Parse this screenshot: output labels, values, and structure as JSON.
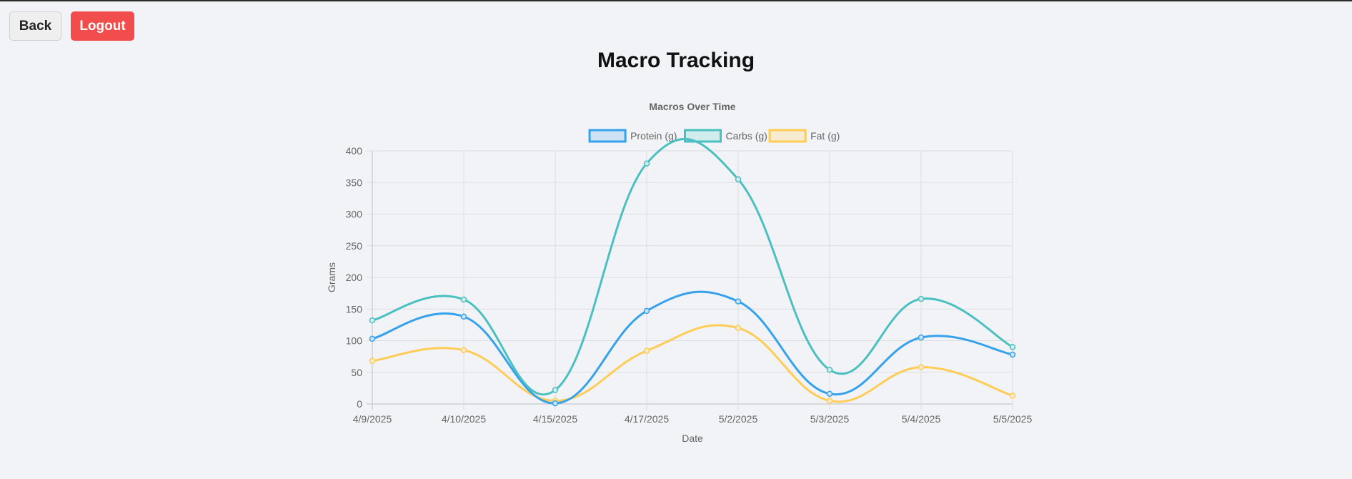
{
  "nav": {
    "back_label": "Back",
    "logout_label": "Logout"
  },
  "page": {
    "title": "Macro Tracking"
  },
  "chart_data": {
    "type": "line",
    "title": "Macros Over Time",
    "xlabel": "Date",
    "ylabel": "Grams",
    "ylim": [
      0,
      400
    ],
    "yticks": [
      0,
      50,
      100,
      150,
      200,
      250,
      300,
      350,
      400
    ],
    "grid": true,
    "legend_position": "top-center",
    "categories": [
      "4/9/2025",
      "4/10/2025",
      "4/15/2025",
      "4/17/2025",
      "5/2/2025",
      "5/3/2025",
      "5/4/2025",
      "5/5/2025"
    ],
    "series": [
      {
        "name": "Protein (g)",
        "color": "#36a2eb",
        "fill": "#cde3f5",
        "values": [
          103,
          138,
          1,
          147,
          162,
          16,
          105,
          78
        ]
      },
      {
        "name": "Carbs (g)",
        "color": "#4bc0c0",
        "fill": "#d0ecec",
        "values": [
          132,
          165,
          22,
          380,
          355,
          54,
          166,
          90
        ]
      },
      {
        "name": "Fat (g)",
        "color": "#ffcd56",
        "fill": "#f8ecd0",
        "values": [
          68,
          85,
          5,
          84,
          120,
          5,
          58,
          13
        ]
      }
    ]
  }
}
